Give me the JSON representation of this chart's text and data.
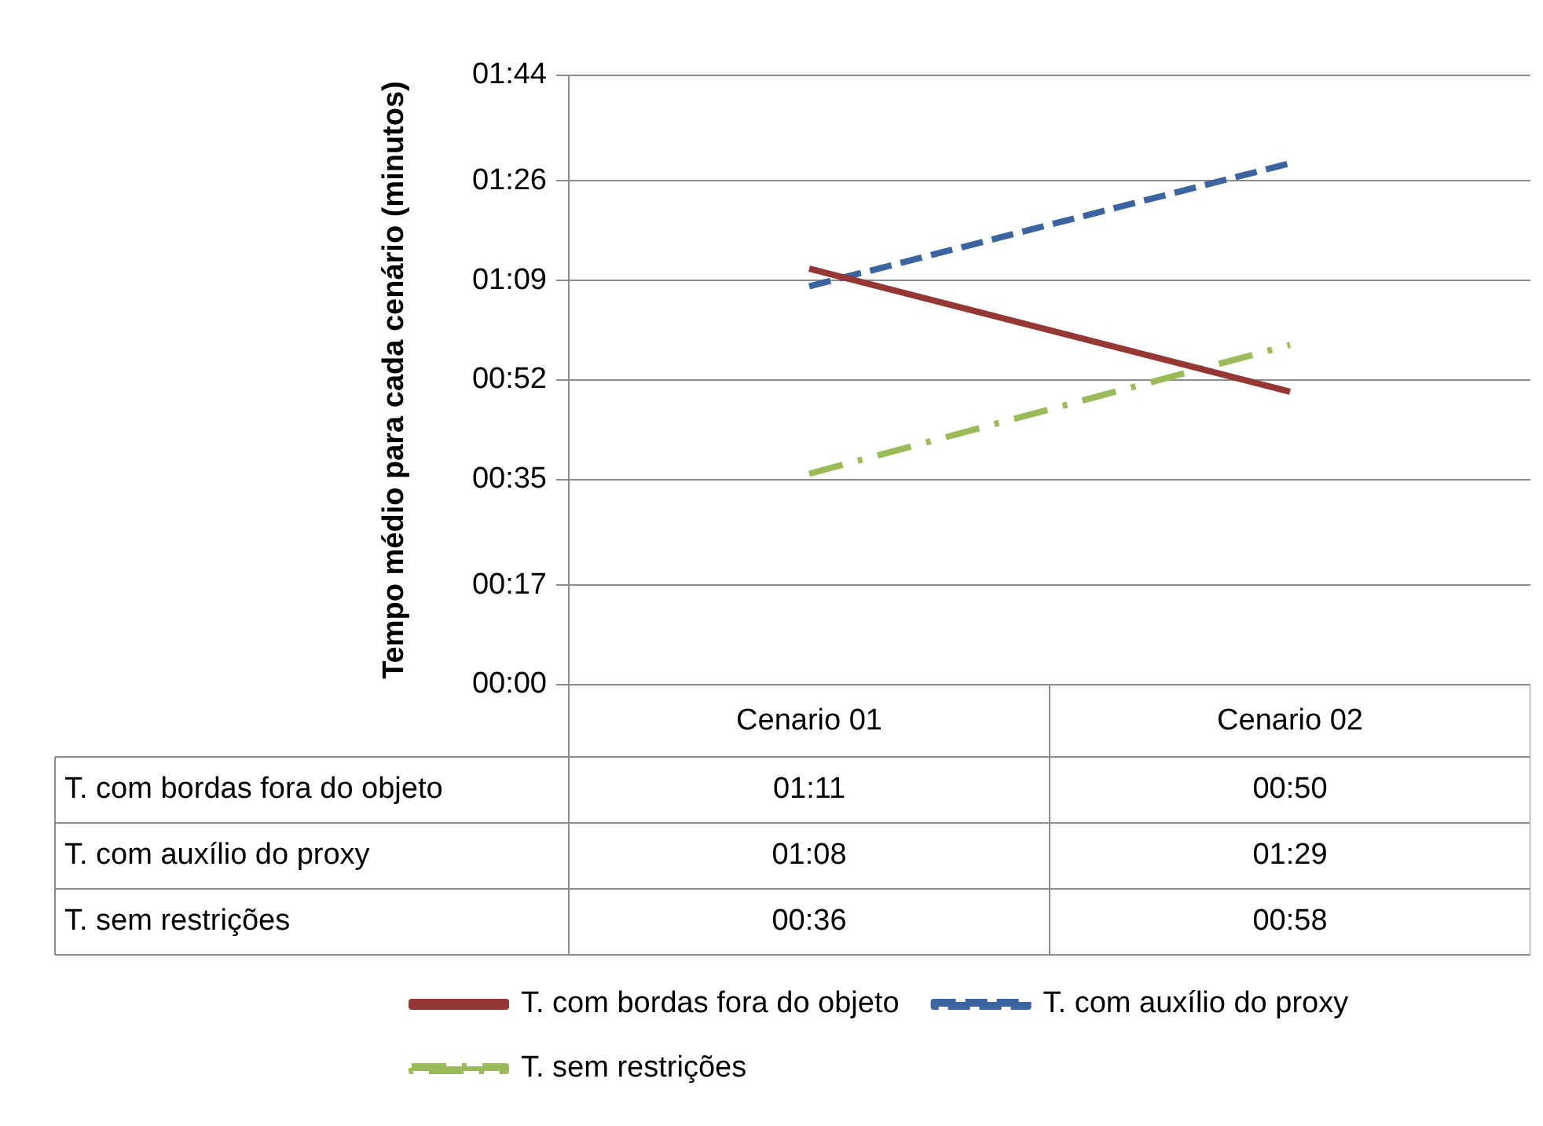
{
  "chart_data": {
    "type": "line",
    "ylabel": "Tempo médio para cada cenário (minutos)",
    "categories": [
      "Cenario 01",
      "Cenario 02"
    ],
    "series": [
      {
        "name": "T. com bordas fora do objeto",
        "color": "#953735",
        "values": [
          71,
          50
        ],
        "value_labels": [
          "01:11",
          "00:50"
        ],
        "line_style": "solid"
      },
      {
        "name": "T. com auxílio do proxy",
        "color": "#3b64a0",
        "values": [
          68,
          89
        ],
        "value_labels": [
          "01:08",
          "01:29"
        ],
        "line_style": "dashed"
      },
      {
        "name": "T. sem restrições",
        "color": "#9bbb59",
        "values": [
          36,
          58
        ],
        "value_labels": [
          "00:36",
          "00:58"
        ],
        "line_style": "dashdot"
      }
    ],
    "ylim": [
      0,
      104
    ],
    "yticks": [
      {
        "value": 0,
        "label": "00:00"
      },
      {
        "value": 17,
        "label": "00:17"
      },
      {
        "value": 35,
        "label": "00:35"
      },
      {
        "value": 52,
        "label": "00:52"
      },
      {
        "value": 69,
        "label": "01:09"
      },
      {
        "value": 86,
        "label": "01:26"
      },
      {
        "value": 104,
        "label": "01:44"
      }
    ],
    "grid": "y",
    "marker": "none",
    "legend": "bottom"
  }
}
